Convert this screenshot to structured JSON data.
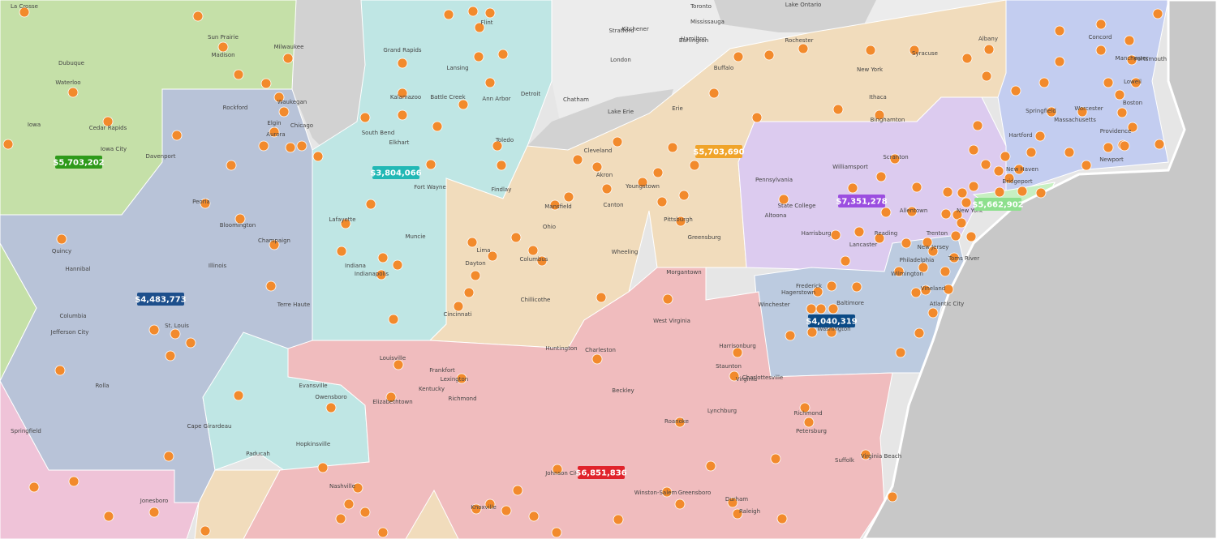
{
  "regions": [
    {
      "label": "$5,703,202",
      "color": "#2e9a1a"
    },
    {
      "label": "$3,804,066",
      "color": "#22b8b5"
    },
    {
      "label": "$5,703,690",
      "color": "#f0a42a"
    },
    {
      "label": "$7,351,278",
      "color": "#9b4ee0"
    },
    {
      "label": "$5,662,902",
      "color": "#8ee08e"
    },
    {
      "label": "$4,483,773",
      "color": "#1d4f8c"
    },
    {
      "label": "$4,040,319",
      "color": "#0b4a86"
    },
    {
      "label": "$6,851,836",
      "color": "#e0232b"
    }
  ],
  "places": [
    "La Crosse",
    "Madison",
    "Sun Prairie",
    "Milwaukee",
    "Waukegan",
    "Chicago",
    "Elgin",
    "Aurora",
    "Rockford",
    "Dubuque",
    "Cedar Rapids",
    "Iowa City",
    "Davenport",
    "Waterloo",
    "Bloomington",
    "Champaign",
    "Peoria",
    "Quincy",
    "Hannibal",
    "Columbia",
    "Jefferson City",
    "St. Louis",
    "Rolla",
    "Cape Girardeau",
    "Springfield",
    "Jonesboro",
    "Paducah",
    "Hopkinsville",
    "Owensboro",
    "Evansville",
    "Terre Haute",
    "Lafayette",
    "Indianapolis",
    "Muncie",
    "Fort Wayne",
    "South Bend",
    "Elkhart",
    "Kalamazoo",
    "Grand Rapids",
    "Lansing",
    "Battle Creek",
    "Ann Arbor",
    "Detroit",
    "Flint",
    "Toledo",
    "Findlay",
    "Lima",
    "Dayton",
    "Columbus",
    "Cincinnati",
    "Chillicothe",
    "Mansfield",
    "Cleveland",
    "Canton",
    "Akron",
    "Youngstown",
    "Pittsburgh",
    "Wheeling",
    "Greensburg",
    "Morgantown",
    "Erie",
    "Buffalo",
    "Rochester",
    "Syracuse",
    "Ithaca",
    "Albany",
    "Binghamton",
    "Williamsport",
    "State College",
    "Altoona",
    "Harrisburg",
    "Lancaster",
    "Reading",
    "Allentown",
    "Scranton",
    "Philadelphia",
    "Trenton",
    "Wilmington",
    "Baltimore",
    "Washington",
    "Hagerstown",
    "Frederick",
    "Winchester",
    "Harrisonburg",
    "Staunton",
    "Charlottesville",
    "Lynchburg",
    "Richmond",
    "Petersburg",
    "Roanoke",
    "Charleston",
    "Huntington",
    "Beckley",
    "Lexington",
    "Louisville",
    "Frankfort",
    "Richmond",
    "Elizabethtown",
    "Nashville",
    "Knoxville",
    "Johnson City",
    "Greensboro",
    "Winston-Salem",
    "Durham",
    "Raleigh",
    "Virginia Beach",
    "Suffolk",
    "Atlantic City",
    "Vineland",
    "Toms River",
    "New York",
    "Bridgeport",
    "New Haven",
    "Hartford",
    "Springfield",
    "Worcester",
    "Providence",
    "Boston",
    "Lowell",
    "Manchester",
    "Concord",
    "Portsmouth",
    "Newport",
    "Toronto",
    "Mississauga",
    "Hamilton",
    "London",
    "Kitchener",
    "Lake Ontario",
    "Lake Erie",
    "Pennsylvania",
    "Ohio",
    "Indiana",
    "Illinois",
    "Kentucky",
    "Virginia",
    "West Virginia",
    "New York",
    "New Jersey",
    "Massachusetts",
    "Iowa",
    "Chatham",
    "Burlington",
    "Stratford"
  ]
}
